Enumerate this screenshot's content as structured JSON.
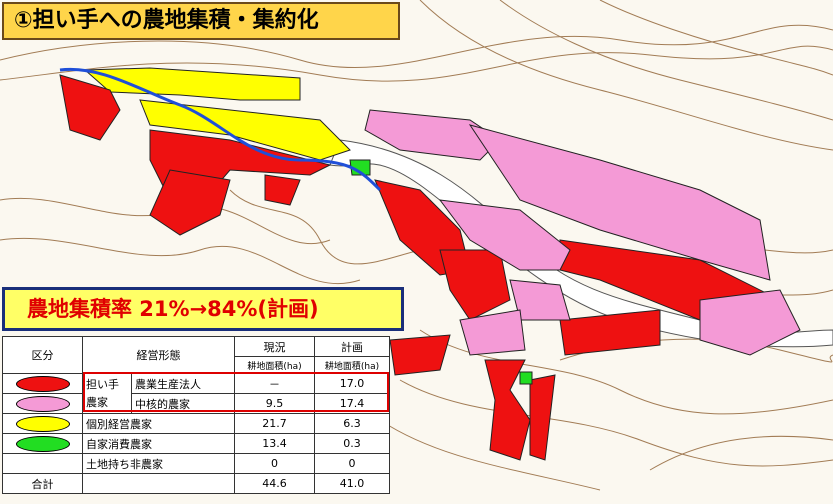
{
  "header": {
    "title": "①担い手への農地集積・集約化"
  },
  "banner": {
    "text": "農地集積率 21%→84%(計画)"
  },
  "table": {
    "headers": {
      "category": "区分",
      "form": "経営形態",
      "current": "現況",
      "plan": "計画",
      "current_unit": "耕地面積(ha)",
      "plan_unit": "耕地面積(ha)"
    },
    "group_label": "担い手農家",
    "rows": [
      {
        "color": "#ee1111",
        "form": "農業生産法人",
        "current": "－",
        "plan": "17.0"
      },
      {
        "color": "#f49ad6",
        "form": "中核的農家",
        "current": "9.5",
        "plan": "17.4"
      },
      {
        "color": "#ffff00",
        "form": "個別経営農家",
        "current": "21.7",
        "plan": "6.3"
      },
      {
        "color": "#22dd22",
        "form": "自家消費農家",
        "current": "13.4",
        "plan": "0.3"
      },
      {
        "color": null,
        "form": "土地持ち非農家",
        "current": "0",
        "plan": "0"
      }
    ],
    "total": {
      "label": "合計",
      "current": "44.6",
      "plan": "41.0"
    }
  }
}
